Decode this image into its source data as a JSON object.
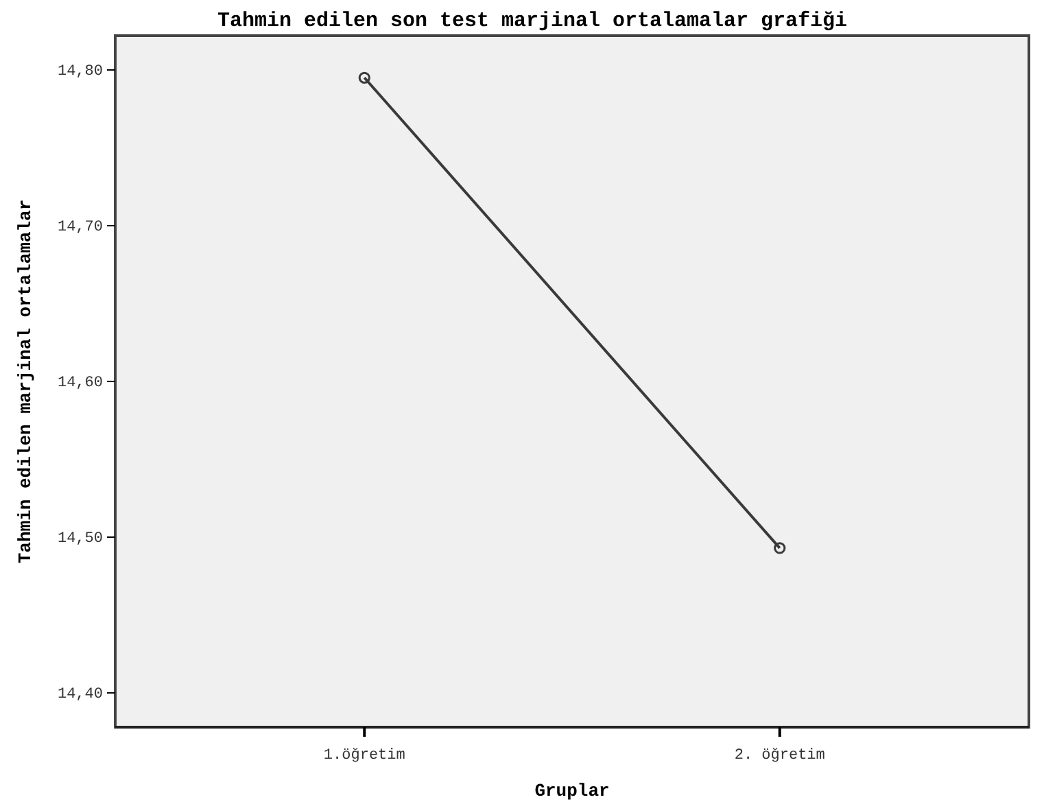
{
  "chart_data": {
    "type": "line",
    "title": "Tahmin edilen son test marjinal ortalamalar grafiği",
    "xlabel": "Gruplar",
    "ylabel": "Tahmin edilen marjinal ortalamalar",
    "categories": [
      "1.öğretim",
      "2. öğretim"
    ],
    "series": [
      {
        "color": "#3a3a3a",
        "values": [
          14.795,
          14.493
        ]
      }
    ],
    "ylim": [
      14.378,
      14.822
    ],
    "yticks": [
      {
        "value": 14.4,
        "label": "14,40"
      },
      {
        "value": 14.5,
        "label": "14,50"
      },
      {
        "value": 14.6,
        "label": "14,60"
      },
      {
        "value": 14.7,
        "label": "14,70"
      },
      {
        "value": 14.8,
        "label": "14,80"
      }
    ],
    "marker": "circle",
    "line_style": "solid"
  }
}
